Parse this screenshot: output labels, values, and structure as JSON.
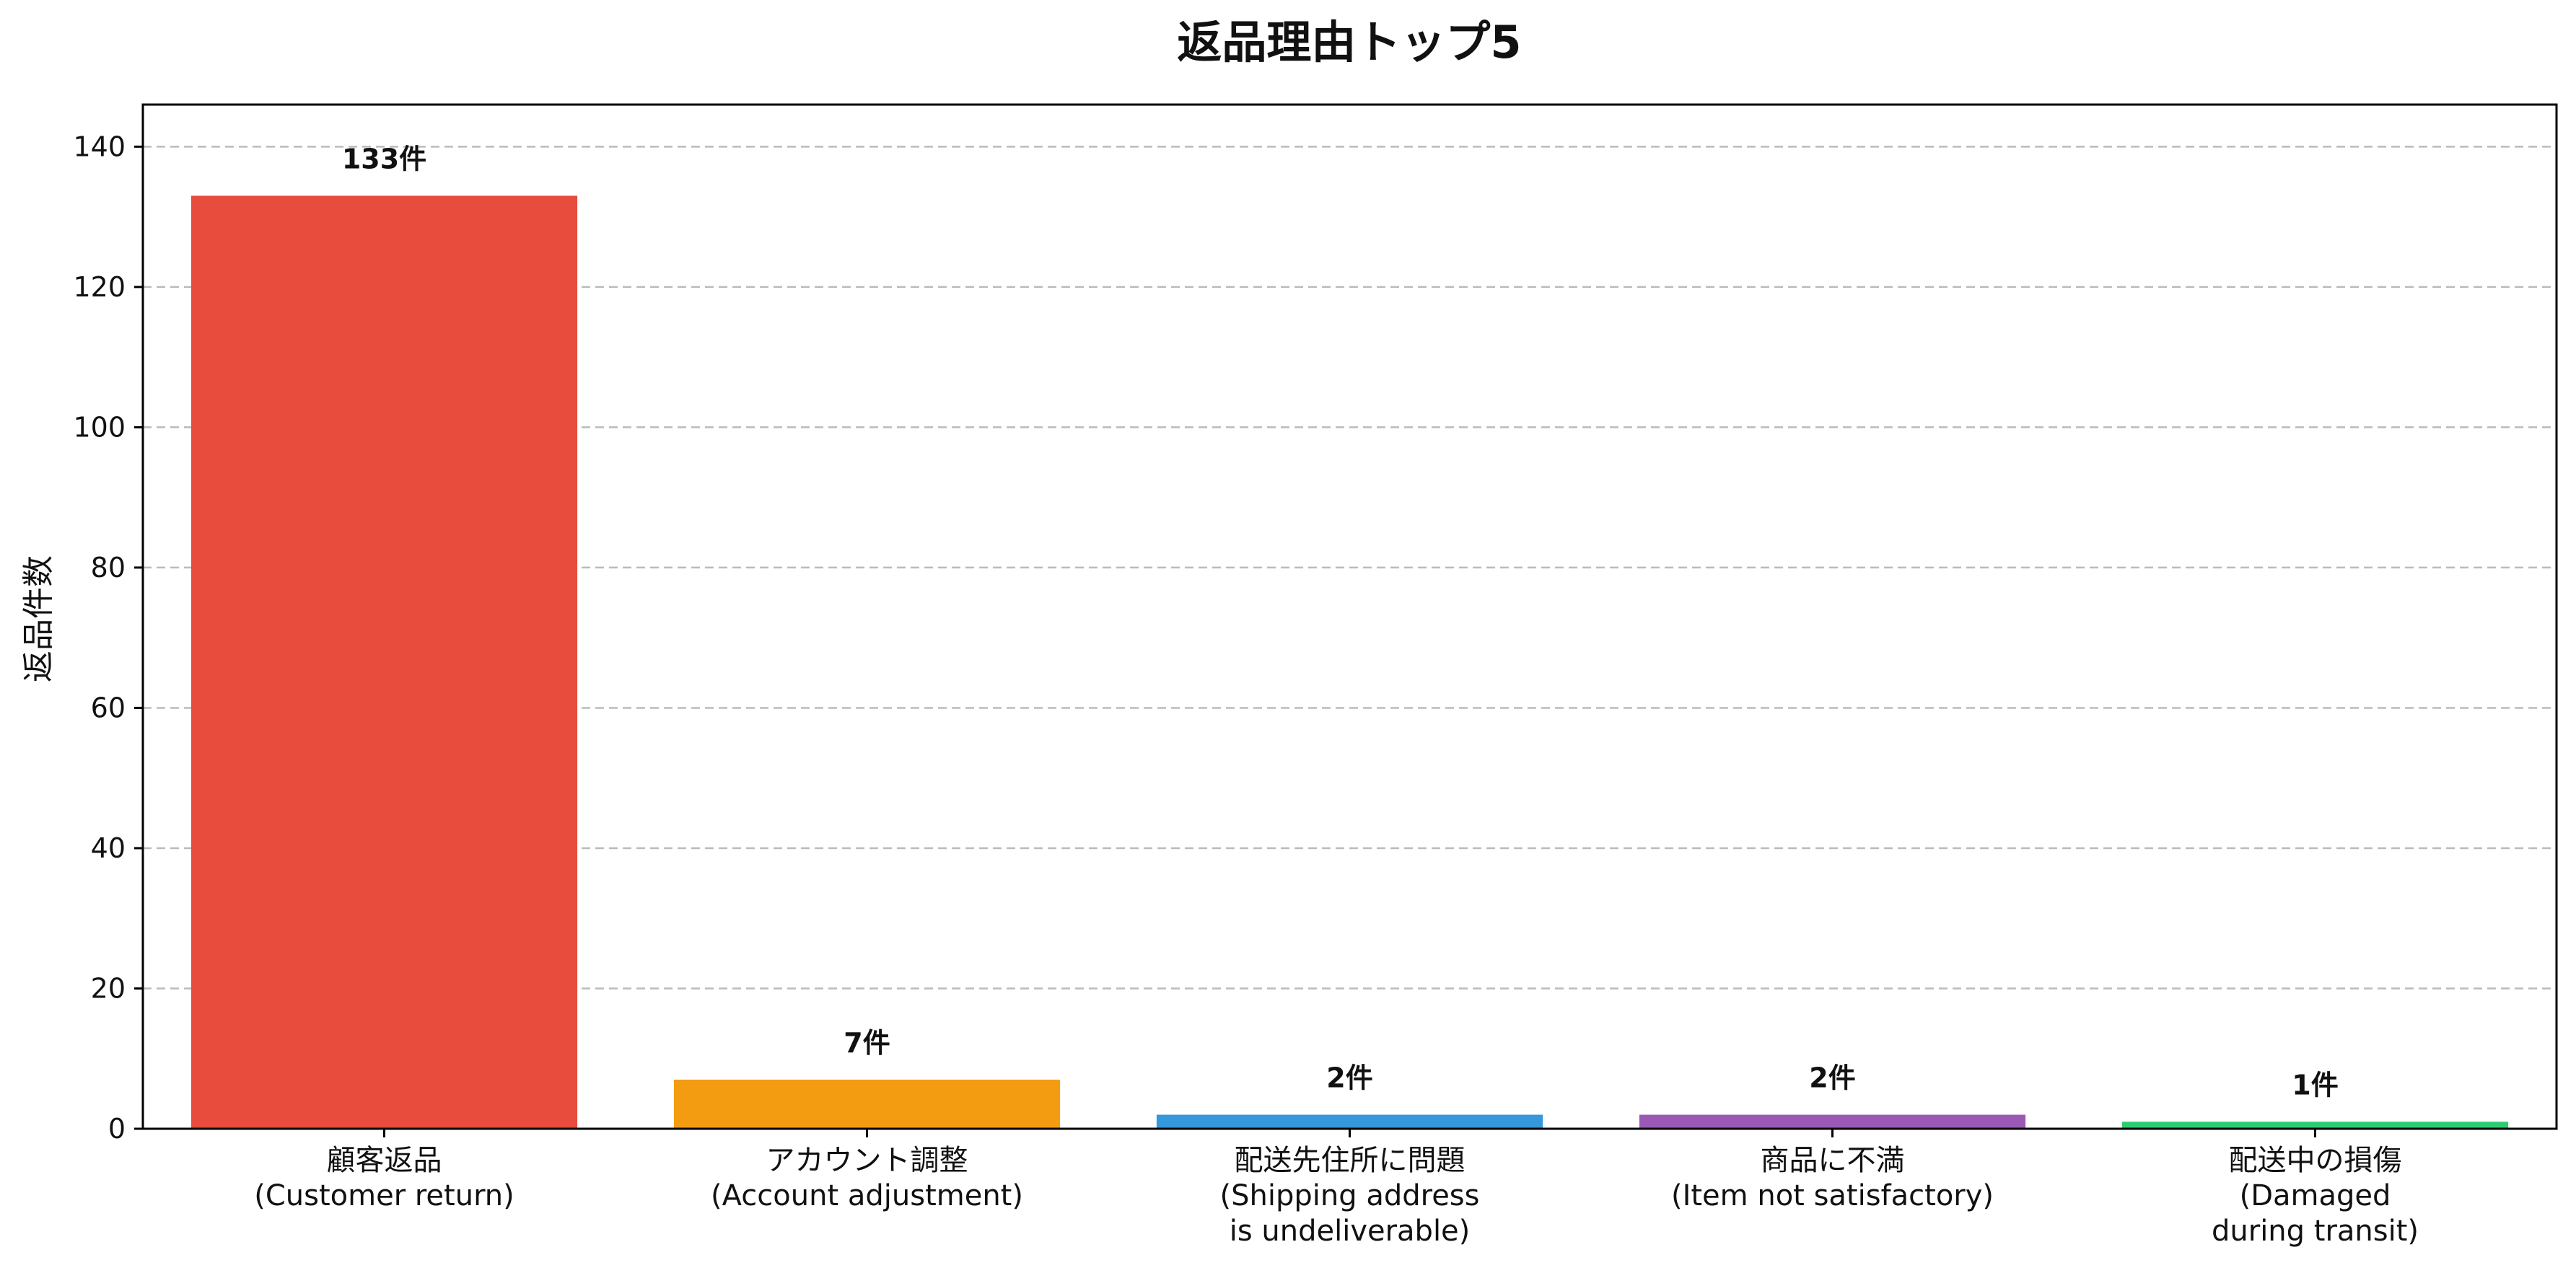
{
  "chart_data": {
    "type": "bar",
    "title": "返品理由トップ5",
    "xlabel": "",
    "ylabel": "返品件数",
    "ylim": [
      0,
      146
    ],
    "yticks": [
      0,
      20,
      40,
      60,
      80,
      100,
      120,
      140
    ],
    "grid": true,
    "categories": [
      [
        "顧客返品",
        "(Customer return)"
      ],
      [
        "アカウント調整",
        "(Account adjustment)"
      ],
      [
        "配送先住所に問題",
        "(Shipping address",
        "is undeliverable)"
      ],
      [
        "商品に不満",
        "(Item not satisfactory)"
      ],
      [
        "配送中の損傷",
        "(Damaged",
        "during transit)"
      ]
    ],
    "values": [
      133,
      7,
      2,
      2,
      1
    ],
    "data_labels": [
      "133件",
      "7件",
      "2件",
      "2件",
      "1件"
    ],
    "colors": [
      "#e74c3c",
      "#f39c12",
      "#3498db",
      "#9b59b6",
      "#2ecc71"
    ]
  }
}
